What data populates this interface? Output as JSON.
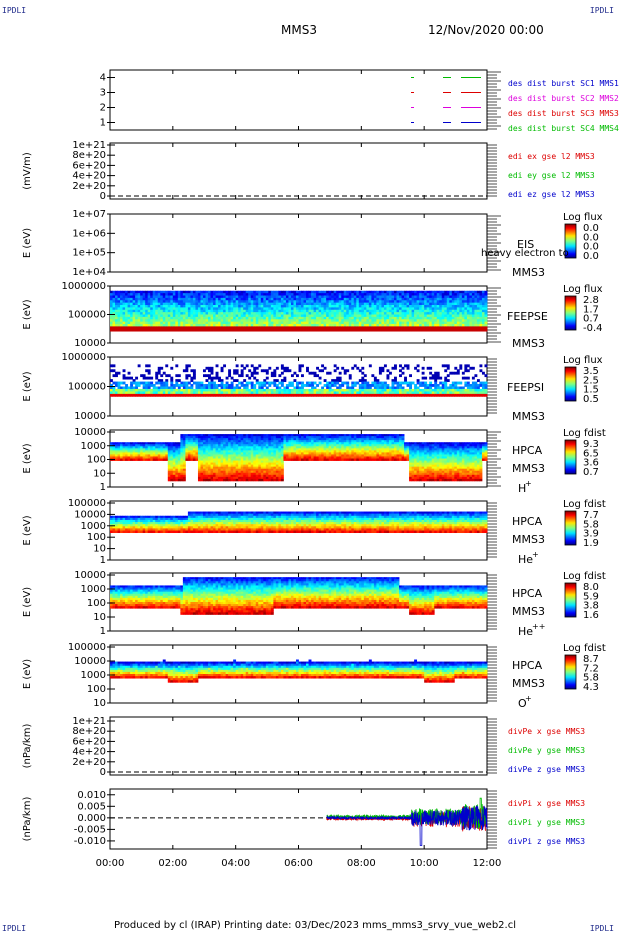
{
  "header": {
    "corner_label": "IPDLI",
    "spacecraft": "MMS3",
    "start_datetime": "12/Nov/2020 00:00"
  },
  "footer": {
    "text": "Produced by cl (IRAP)   Printing date: 03/Dec/2023   mms_mms3_srvy_vue_web2.cl"
  },
  "time_axis": {
    "ticks": [
      "00:00",
      "02:00",
      "04:00",
      "06:00",
      "08:00",
      "10:00",
      "12:00"
    ],
    "range_hours": [
      0,
      12
    ]
  },
  "colors": {
    "red": "#dd0000",
    "green": "#00cc00",
    "blue": "#0000cc",
    "magenta": "#dd00dd",
    "axis": "#000000"
  },
  "chart_data": [
    {
      "type": "line",
      "panel": "burst",
      "ylabel": "",
      "ylim": [
        0.5,
        4.5
      ],
      "yticks": [
        "1",
        "2",
        "3",
        "4"
      ],
      "series": [
        {
          "name": "des dist burst SC1 MMS1",
          "color": "#00bb00",
          "level": 4
        },
        {
          "name": "des dist burst SC2 MMS2",
          "color": "#dd0000",
          "level": 3
        },
        {
          "name": "des dist burst SC3 MMS3",
          "color": "#dd00dd",
          "level": 2
        },
        {
          "name": "des dist burst SC4 MMS4",
          "color": "#0000cc",
          "level": 1
        }
      ],
      "bursts_hours": [
        [
          10.9,
          11.0
        ],
        [
          11.5,
          11.6
        ],
        [
          12.0,
          12.6
        ]
      ],
      "legend_colors": [
        "#0000cc",
        "#dd00dd",
        "#dd0000",
        "#00bb00"
      ],
      "legend_labels": [
        "des dist burst SC1 MMS1",
        "des dist burst SC2 MMS2",
        "des dist burst SC3 MMS3",
        "des dist burst SC4 MMS4"
      ]
    },
    {
      "type": "line",
      "panel": "edi",
      "ylabel": "(mV/m)",
      "yticks": [
        "1e+21",
        "8e+20",
        "6e+20",
        "4e+20",
        "2e+20",
        "0"
      ],
      "series": [
        {
          "name": "edi ex gse l2 MMS3",
          "color": "#dd0000"
        },
        {
          "name": "edi ey gse l2 MMS3",
          "color": "#00bb00"
        },
        {
          "name": "edi ez gse l2 MMS3",
          "color": "#0000cc"
        }
      ]
    },
    {
      "type": "heatmap",
      "panel": "EIS",
      "ylabel": "E (eV)",
      "yticks": [
        "1e+07",
        "1e+06",
        "1e+05",
        "1e+04"
      ],
      "instrument": "EIS",
      "spacecraft": "MMS3",
      "overlay_text": "heavy electron to",
      "colorbar_title": "Log flux",
      "colorbar_ticks": [
        "0.0",
        "0.0",
        "0.0",
        "0.0"
      ]
    },
    {
      "type": "heatmap",
      "panel": "FEEPSE",
      "ylabel": "E (eV)",
      "yticks": [
        "1000000",
        "100000",
        "10000"
      ],
      "instrument": "FEEPSE",
      "spacecraft": "MMS3",
      "colorbar_title": "Log flux",
      "colorbar_ticks": [
        "2.8",
        "1.7",
        "0.7",
        "-0.4"
      ]
    },
    {
      "type": "heatmap",
      "panel": "FEEPSI",
      "ylabel": "E (eV)",
      "yticks": [
        "1000000",
        "100000",
        "10000"
      ],
      "instrument": "FEEPSI",
      "spacecraft": "MMS3",
      "colorbar_title": "Log flux",
      "colorbar_ticks": [
        "3.5",
        "2.5",
        "1.5",
        "0.5"
      ]
    },
    {
      "type": "heatmap",
      "panel": "HPCA-H",
      "ylabel": "E (eV)",
      "yticks": [
        "10000",
        "1000",
        "100",
        "10",
        "1"
      ],
      "instrument": "HPCA",
      "spacecraft": "MMS3",
      "species": "H",
      "species_sup": "+",
      "colorbar_title": "Log fdist",
      "colorbar_ticks": [
        "9.3",
        "6.5",
        "3.6",
        "0.7"
      ]
    },
    {
      "type": "heatmap",
      "panel": "HPCA-He+",
      "ylabel": "E (eV)",
      "yticks": [
        "100000",
        "10000",
        "1000",
        "100",
        "10",
        "1"
      ],
      "instrument": "HPCA",
      "spacecraft": "MMS3",
      "species": "He",
      "species_sup": "+",
      "colorbar_title": "Log fdist",
      "colorbar_ticks": [
        "7.7",
        "5.8",
        "3.9",
        "1.9"
      ]
    },
    {
      "type": "heatmap",
      "panel": "HPCA-He++",
      "ylabel": "E (eV)",
      "yticks": [
        "10000",
        "1000",
        "100",
        "10",
        "1"
      ],
      "instrument": "HPCA",
      "spacecraft": "MMS3",
      "species": "He",
      "species_sup": "++",
      "colorbar_title": "Log fdist",
      "colorbar_ticks": [
        "8.0",
        "5.9",
        "3.8",
        "1.6"
      ]
    },
    {
      "type": "heatmap",
      "panel": "HPCA-O+",
      "ylabel": "E (eV)",
      "yticks": [
        "100000",
        "10000",
        "1000",
        "100",
        "10"
      ],
      "instrument": "HPCA",
      "spacecraft": "MMS3",
      "species": "O",
      "species_sup": "+",
      "colorbar_title": "Log fdist",
      "colorbar_ticks": [
        "8.7",
        "7.2",
        "5.8",
        "4.3"
      ]
    },
    {
      "type": "line",
      "panel": "divPe",
      "ylabel": "(nPa/km)",
      "yticks": [
        "1e+21",
        "8e+20",
        "6e+20",
        "4e+20",
        "2e+20",
        "0"
      ],
      "series": [
        {
          "name": "divPe x gse MMS3",
          "color": "#dd0000"
        },
        {
          "name": "divPe y gse MMS3",
          "color": "#00bb00"
        },
        {
          "name": "divPe z gse MMS3",
          "color": "#0000cc"
        }
      ]
    },
    {
      "type": "line",
      "panel": "divPi",
      "ylabel": "(nPa/km)",
      "yticks": [
        "0.010",
        "0.005",
        "0.000",
        "-0.005",
        "-0.010"
      ],
      "ylim": [
        -0.0135,
        0.0125
      ],
      "data_start_hours": 6.9,
      "series": [
        {
          "name": "divPi x gse MMS3",
          "color": "#dd0000"
        },
        {
          "name": "divPi y gse MMS3",
          "color": "#00bb00"
        },
        {
          "name": "divPi z gse MMS3",
          "color": "#0000cc"
        }
      ]
    }
  ]
}
